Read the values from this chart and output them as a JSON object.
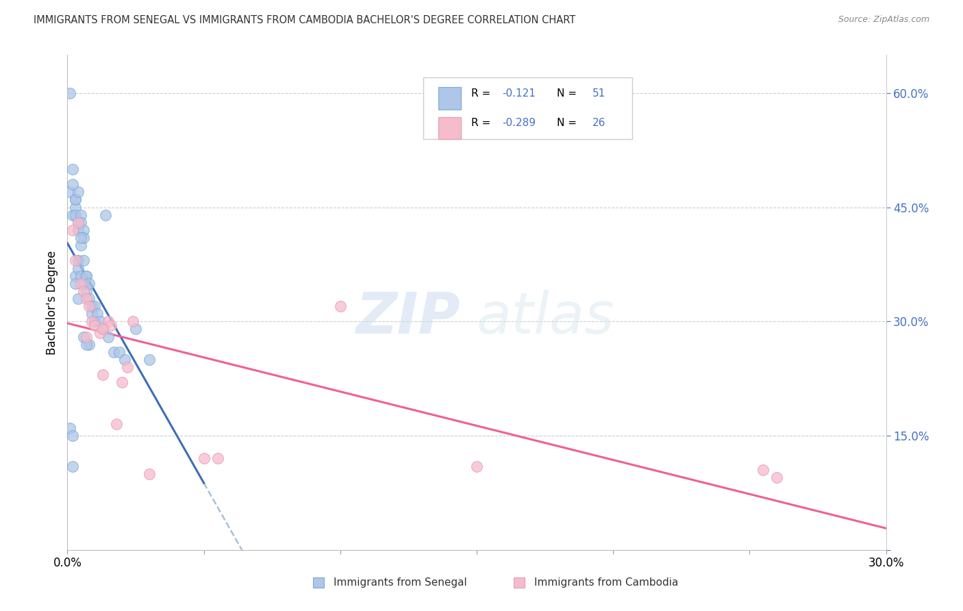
{
  "title": "IMMIGRANTS FROM SENEGAL VS IMMIGRANTS FROM CAMBODIA BACHELOR'S DEGREE CORRELATION CHART",
  "source": "Source: ZipAtlas.com",
  "ylabel": "Bachelor's Degree",
  "xlim": [
    0.0,
    0.3
  ],
  "ylim": [
    0.0,
    0.65
  ],
  "xticks": [
    0.0,
    0.05,
    0.1,
    0.15,
    0.2,
    0.25,
    0.3
  ],
  "xticklabels": [
    "0.0%",
    "",
    "",
    "",
    "",
    "",
    "30.0%"
  ],
  "right_yticks": [
    0.0,
    0.15,
    0.3,
    0.45,
    0.6
  ],
  "right_yticklabels": [
    "",
    "15.0%",
    "30.0%",
    "45.0%",
    "60.0%"
  ],
  "R_senegal": -0.121,
  "N_senegal": 51,
  "R_cambodia": -0.289,
  "N_cambodia": 26,
  "color_senegal_face": "#aec6e8",
  "color_senegal_edge": "#7baad4",
  "color_cambodia_face": "#f5bccb",
  "color_cambodia_edge": "#e898b8",
  "line_color_senegal": "#3d6db5",
  "line_color_cambodia": "#f06090",
  "line_color_dashed": "#a8c0d8",
  "senegal_x": [
    0.001,
    0.001,
    0.001,
    0.002,
    0.002,
    0.002,
    0.002,
    0.003,
    0.003,
    0.003,
    0.003,
    0.003,
    0.004,
    0.004,
    0.004,
    0.004,
    0.004,
    0.005,
    0.005,
    0.005,
    0.005,
    0.006,
    0.006,
    0.006,
    0.006,
    0.007,
    0.007,
    0.007,
    0.008,
    0.008,
    0.008,
    0.009,
    0.009,
    0.01,
    0.01,
    0.011,
    0.012,
    0.013,
    0.014,
    0.015,
    0.017,
    0.019,
    0.021,
    0.025,
    0.03,
    0.003,
    0.004,
    0.005,
    0.002,
    0.006,
    0.007
  ],
  "senegal_y": [
    0.6,
    0.47,
    0.16,
    0.5,
    0.44,
    0.15,
    0.11,
    0.45,
    0.44,
    0.46,
    0.36,
    0.35,
    0.43,
    0.42,
    0.38,
    0.37,
    0.33,
    0.44,
    0.43,
    0.4,
    0.36,
    0.42,
    0.41,
    0.38,
    0.35,
    0.36,
    0.36,
    0.34,
    0.35,
    0.33,
    0.27,
    0.32,
    0.31,
    0.32,
    0.3,
    0.31,
    0.3,
    0.29,
    0.44,
    0.28,
    0.26,
    0.26,
    0.25,
    0.29,
    0.25,
    0.46,
    0.47,
    0.41,
    0.48,
    0.28,
    0.27
  ],
  "cambodia_x": [
    0.002,
    0.003,
    0.004,
    0.005,
    0.006,
    0.007,
    0.008,
    0.009,
    0.01,
    0.012,
    0.013,
    0.015,
    0.016,
    0.018,
    0.02,
    0.022,
    0.024,
    0.03,
    0.05,
    0.055,
    0.1,
    0.15,
    0.255,
    0.26,
    0.007,
    0.013
  ],
  "cambodia_y": [
    0.42,
    0.38,
    0.43,
    0.35,
    0.34,
    0.33,
    0.32,
    0.3,
    0.295,
    0.285,
    0.23,
    0.3,
    0.295,
    0.165,
    0.22,
    0.24,
    0.3,
    0.1,
    0.12,
    0.12,
    0.32,
    0.11,
    0.105,
    0.095,
    0.28,
    0.29
  ]
}
